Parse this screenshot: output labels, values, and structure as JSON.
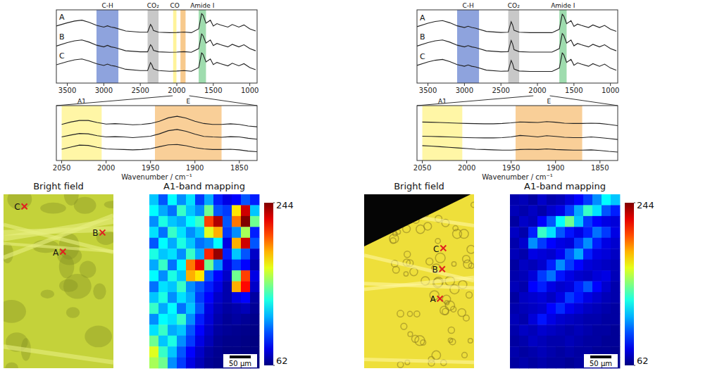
{
  "chart_data": [
    {
      "type": "line",
      "x": [
        3650,
        3500,
        3400,
        3300,
        3200,
        3100,
        3000,
        2950,
        2900,
        2850,
        2700,
        2500,
        2400,
        2360,
        2340,
        2320,
        2250,
        2100,
        2000,
        1900,
        1800,
        1700,
        1660,
        1640,
        1600,
        1540,
        1500,
        1450,
        1400,
        1300,
        1240,
        1150,
        1080,
        1000,
        920
      ],
      "xlim": [
        3650,
        900
      ],
      "xticks": [
        3500,
        3000,
        2500,
        2000,
        1500,
        1000
      ],
      "ylim": [
        0,
        3.4
      ],
      "tick_labels": "x",
      "bands": [
        {
          "label": "C-H",
          "range": [
            3100,
            2800
          ],
          "color": "#8ea3dd"
        },
        {
          "label": "CO₂",
          "range": [
            2400,
            2250
          ],
          "color": "#c8c8c8"
        },
        {
          "label": "CO",
          "range": [
            2050,
            2005
          ],
          "color": "#fff39a"
        },
        {
          "label": "",
          "range": [
            1950,
            1880
          ],
          "color": "#f7c98c"
        },
        {
          "label": "Amide I",
          "range": [
            1700,
            1600
          ],
          "color": "#9fdcae"
        }
      ],
      "series": [
        {
          "name": "A",
          "color": "#222222",
          "values": [
            2.65,
            2.8,
            2.88,
            2.92,
            2.82,
            2.68,
            2.6,
            2.66,
            2.6,
            2.57,
            2.42,
            2.36,
            2.36,
            2.72,
            2.62,
            2.44,
            2.36,
            2.34,
            2.35,
            2.37,
            2.34,
            2.52,
            3.22,
            3.15,
            2.78,
            2.92,
            2.65,
            2.76,
            2.7,
            2.6,
            2.72,
            2.6,
            2.7,
            2.52,
            2.42
          ]
        },
        {
          "name": "B",
          "color": "#222222",
          "values": [
            1.72,
            1.88,
            1.96,
            2.0,
            1.9,
            1.76,
            1.68,
            1.75,
            1.68,
            1.65,
            1.5,
            1.45,
            1.45,
            1.78,
            1.7,
            1.52,
            1.45,
            1.43,
            1.44,
            1.46,
            1.43,
            1.6,
            2.28,
            2.2,
            1.86,
            2.0,
            1.74,
            1.84,
            1.78,
            1.68,
            1.8,
            1.68,
            1.78,
            1.6,
            1.5
          ]
        },
        {
          "name": "C",
          "color": "#222222",
          "values": [
            0.85,
            1.0,
            1.08,
            1.12,
            1.02,
            0.9,
            0.82,
            0.88,
            0.82,
            0.79,
            0.64,
            0.58,
            0.58,
            0.95,
            0.84,
            0.66,
            0.58,
            0.55,
            0.56,
            0.58,
            0.55,
            0.72,
            1.4,
            1.33,
            0.98,
            1.12,
            0.86,
            0.96,
            0.9,
            0.8,
            0.92,
            0.8,
            0.9,
            0.72,
            0.62
          ]
        }
      ]
    },
    {
      "type": "line",
      "x": [
        2050,
        2040,
        2030,
        2020,
        2010,
        2000,
        1990,
        1980,
        1970,
        1960,
        1950,
        1940,
        1930,
        1920,
        1910,
        1900,
        1890,
        1880,
        1870,
        1860,
        1850,
        1840,
        1830
      ],
      "xlim": [
        2056,
        1830
      ],
      "xticks": [
        2050,
        2000,
        1950,
        1900,
        1850
      ],
      "ylim": [
        0,
        3.5
      ],
      "tick_labels": "x",
      "xlabel": "Wavenumber / cm⁻¹",
      "bands": [
        {
          "label": "A1",
          "range": [
            2050,
            2005
          ],
          "color": "#fff6a6"
        },
        {
          "label": "E",
          "range": [
            1945,
            1870
          ],
          "color": "#f9cf98"
        }
      ],
      "series": [
        {
          "color": "#222222",
          "values": [
            2.3,
            2.45,
            2.55,
            2.55,
            2.42,
            2.32,
            2.35,
            2.32,
            2.28,
            2.3,
            2.36,
            2.5,
            2.72,
            2.82,
            2.7,
            2.5,
            2.36,
            2.3,
            2.3,
            2.34,
            2.3,
            2.2,
            2.15
          ]
        },
        {
          "color": "#222222",
          "values": [
            1.5,
            1.62,
            1.72,
            1.7,
            1.58,
            1.5,
            1.52,
            1.5,
            1.46,
            1.5,
            1.55,
            1.7,
            1.9,
            1.98,
            1.86,
            1.68,
            1.54,
            1.5,
            1.48,
            1.52,
            1.5,
            1.42,
            1.36
          ]
        },
        {
          "color": "#222222",
          "values": [
            0.72,
            0.85,
            0.98,
            0.96,
            0.84,
            0.74,
            0.72,
            0.7,
            0.68,
            0.7,
            0.75,
            0.88,
            1.0,
            1.02,
            0.94,
            0.82,
            0.74,
            0.7,
            0.7,
            0.72,
            0.68,
            0.6,
            0.56
          ]
        }
      ]
    },
    {
      "type": "scatter",
      "title": "Bright field",
      "xlim": [
        0,
        1
      ],
      "ylim": [
        1,
        0
      ],
      "tick_labels": false,
      "x": [
        0.54,
        0.9,
        0.19
      ],
      "values": [
        0.33,
        0.22,
        0.07
      ],
      "labels": [
        "A",
        "B",
        "C"
      ],
      "color": "#e02020",
      "marker": "x"
    },
    {
      "type": "heatmap",
      "title": "A1-band mapping",
      "scale_bar": "50 µm",
      "colorbar": {
        "range": [
          62,
          244
        ],
        "ticks": [
          62,
          244
        ]
      },
      "cells": [
        [
          120,
          100,
          130,
          110,
          125,
          95,
          115,
          90,
          80,
          85,
          100,
          90
        ],
        [
          130,
          115,
          105,
          140,
          120,
          110,
          150,
          100,
          95,
          180,
          230,
          120
        ],
        [
          110,
          135,
          120,
          115,
          130,
          140,
          210,
          235,
          100,
          200,
          244,
          150
        ],
        [
          125,
          105,
          140,
          125,
          110,
          120,
          170,
          190,
          95,
          110,
          160,
          90
        ],
        [
          100,
          130,
          115,
          135,
          120,
          105,
          110,
          130,
          80,
          190,
          230,
          100
        ],
        [
          135,
          120,
          125,
          110,
          140,
          115,
          215,
          240,
          90,
          120,
          100,
          75
        ],
        [
          115,
          140,
          105,
          130,
          200,
          225,
          150,
          110,
          80,
          95,
          85,
          70
        ],
        [
          130,
          110,
          135,
          120,
          190,
          180,
          100,
          85,
          75,
          150,
          210,
          80
        ],
        [
          105,
          125,
          120,
          140,
          110,
          100,
          90,
          80,
          70,
          190,
          220,
          75
        ],
        [
          120,
          135,
          110,
          125,
          115,
          95,
          85,
          75,
          70,
          80,
          85,
          68
        ],
        [
          140,
          115,
          130,
          105,
          120,
          100,
          80,
          72,
          68,
          70,
          72,
          66
        ],
        [
          110,
          130,
          125,
          140,
          110,
          90,
          78,
          70,
          66,
          68,
          66,
          64
        ],
        [
          125,
          140,
          115,
          120,
          100,
          85,
          75,
          68,
          66,
          65,
          64,
          63
        ],
        [
          150,
          120,
          135,
          110,
          95,
          80,
          72,
          66,
          64,
          64,
          63,
          62
        ],
        [
          170,
          140,
          120,
          100,
          85,
          75,
          68,
          65,
          63,
          63,
          62,
          62
        ],
        [
          160,
          150,
          110,
          95,
          80,
          72,
          66,
          64,
          63,
          62,
          62,
          62
        ]
      ]
    },
    {
      "type": "line",
      "x": [
        3650,
        3500,
        3400,
        3300,
        3200,
        3100,
        3000,
        2950,
        2900,
        2850,
        2700,
        2500,
        2400,
        2360,
        2340,
        2320,
        2250,
        2100,
        2000,
        1900,
        1800,
        1700,
        1660,
        1640,
        1600,
        1540,
        1500,
        1450,
        1400,
        1300,
        1240,
        1150,
        1080,
        1000,
        920
      ],
      "xlim": [
        3650,
        900
      ],
      "xticks": [
        3500,
        3000,
        2500,
        2000,
        1500,
        1000
      ],
      "ylim": [
        0,
        3.4
      ],
      "tick_labels": "x",
      "bands": [
        {
          "label": "C-H",
          "range": [
            3100,
            2800
          ],
          "color": "#8ea3dd"
        },
        {
          "label": "CO₂",
          "range": [
            2400,
            2250
          ],
          "color": "#c8c8c8"
        },
        {
          "label": "Amide I",
          "range": [
            1700,
            1600
          ],
          "color": "#9fdcae"
        }
      ],
      "series": [
        {
          "name": "A",
          "color": "#222222",
          "values": [
            2.62,
            2.78,
            2.86,
            2.9,
            2.8,
            2.66,
            2.58,
            2.64,
            2.58,
            2.55,
            2.4,
            2.35,
            2.36,
            2.85,
            2.7,
            2.45,
            2.36,
            2.34,
            2.34,
            2.34,
            2.34,
            2.5,
            3.2,
            3.12,
            2.76,
            2.9,
            2.63,
            2.74,
            2.68,
            2.58,
            2.7,
            2.58,
            2.68,
            2.5,
            2.4
          ]
        },
        {
          "name": "B",
          "color": "#222222",
          "values": [
            1.72,
            1.88,
            1.96,
            2.0,
            1.9,
            1.76,
            1.68,
            1.74,
            1.68,
            1.65,
            1.5,
            1.45,
            1.46,
            1.98,
            1.82,
            1.55,
            1.46,
            1.44,
            1.44,
            1.44,
            1.44,
            1.6,
            2.3,
            2.22,
            1.86,
            2.0,
            1.73,
            1.84,
            1.78,
            1.68,
            1.8,
            1.68,
            1.78,
            1.6,
            1.5
          ]
        },
        {
          "name": "C",
          "color": "#222222",
          "values": [
            0.82,
            0.98,
            1.06,
            1.1,
            1.0,
            0.86,
            0.78,
            0.84,
            0.78,
            0.75,
            0.6,
            0.55,
            0.56,
            1.05,
            0.9,
            0.65,
            0.56,
            0.54,
            0.54,
            0.54,
            0.54,
            0.7,
            1.4,
            1.32,
            0.96,
            1.1,
            0.83,
            0.94,
            0.88,
            0.78,
            0.9,
            0.78,
            0.88,
            0.7,
            0.6
          ]
        }
      ]
    },
    {
      "type": "line",
      "x": [
        2050,
        2040,
        2030,
        2020,
        2010,
        2000,
        1990,
        1980,
        1970,
        1960,
        1950,
        1940,
        1930,
        1920,
        1910,
        1900,
        1890,
        1880,
        1870,
        1860,
        1850,
        1840,
        1830
      ],
      "xlim": [
        2056,
        1830
      ],
      "xticks": [
        2050,
        2000,
        1950,
        1900,
        1850
      ],
      "ylim": [
        0,
        3.5
      ],
      "tick_labels": "x",
      "xlabel": "Wavenumber / cm⁻¹",
      "bands": [
        {
          "label": "A1",
          "range": [
            2050,
            2005
          ],
          "color": "#fff6a6"
        },
        {
          "label": "E",
          "range": [
            1945,
            1870
          ],
          "color": "#f9cf98"
        }
      ],
      "series": [
        {
          "color": "#222222",
          "values": [
            2.45,
            2.44,
            2.42,
            2.4,
            2.38,
            2.36,
            2.35,
            2.34,
            2.34,
            2.36,
            2.4,
            2.46,
            2.44,
            2.42,
            2.48,
            2.44,
            2.38,
            2.36,
            2.36,
            2.38,
            2.36,
            2.3,
            2.22
          ]
        },
        {
          "color": "#222222",
          "values": [
            1.55,
            1.54,
            1.52,
            1.5,
            1.48,
            1.46,
            1.45,
            1.44,
            1.44,
            1.46,
            1.5,
            1.6,
            1.56,
            1.5,
            1.58,
            1.54,
            1.48,
            1.46,
            1.46,
            1.5,
            1.46,
            1.4,
            1.34
          ]
        },
        {
          "color": "#222222",
          "values": [
            0.95,
            0.92,
            0.88,
            0.84,
            0.8,
            0.76,
            0.72,
            0.7,
            0.68,
            0.66,
            0.66,
            0.7,
            0.72,
            0.7,
            0.74,
            0.7,
            0.68,
            0.66,
            0.66,
            0.68,
            0.64,
            0.58,
            0.54
          ]
        }
      ]
    },
    {
      "type": "scatter",
      "title": "Bright field",
      "xlim": [
        0,
        1
      ],
      "ylim": [
        1,
        0
      ],
      "tick_labels": false,
      "x": [
        0.69,
        0.71,
        0.72
      ],
      "values": [
        0.6,
        0.43,
        0.31
      ],
      "labels": [
        "A",
        "B",
        "C"
      ],
      "color": "#e02020",
      "marker": "x"
    },
    {
      "type": "heatmap",
      "title": "A1-band mapping",
      "scale_bar": "50 µm",
      "colorbar": {
        "range": [
          62,
          244
        ],
        "ticks": [
          62,
          244
        ]
      },
      "cells": [
        [
          70,
          72,
          68,
          75,
          70,
          72,
          78,
          85,
          95,
          110,
          130,
          120
        ],
        [
          72,
          70,
          74,
          70,
          76,
          80,
          95,
          115,
          140,
          125,
          100,
          90
        ],
        [
          68,
          75,
          72,
          85,
          100,
          130,
          150,
          120,
          95,
          85,
          80,
          78
        ],
        [
          74,
          70,
          90,
          140,
          125,
          100,
          88,
          80,
          90,
          105,
          95,
          80
        ],
        [
          70,
          76,
          110,
          95,
          85,
          80,
          78,
          95,
          110,
          90,
          80,
          76
        ],
        [
          72,
          70,
          80,
          78,
          76,
          82,
          100,
          115,
          90,
          80,
          78,
          74
        ],
        [
          68,
          74,
          72,
          76,
          90,
          110,
          95,
          85,
          78,
          76,
          74,
          72
        ],
        [
          70,
          72,
          78,
          95,
          105,
          88,
          80,
          76,
          74,
          78,
          80,
          72
        ],
        [
          72,
          70,
          85,
          90,
          80,
          76,
          78,
          90,
          100,
          85,
          76,
          70
        ],
        [
          68,
          74,
          76,
          78,
          74,
          80,
          95,
          88,
          80,
          76,
          72,
          70
        ],
        [
          70,
          72,
          74,
          76,
          85,
          92,
          82,
          78,
          74,
          72,
          70,
          68
        ],
        [
          72,
          70,
          78,
          88,
          80,
          76,
          74,
          72,
          70,
          70,
          68,
          68
        ],
        [
          70,
          74,
          72,
          76,
          74,
          72,
          70,
          72,
          70,
          68,
          68,
          66
        ],
        [
          68,
          70,
          74,
          72,
          70,
          70,
          72,
          70,
          68,
          68,
          66,
          66
        ],
        [
          70,
          68,
          70,
          72,
          70,
          68,
          70,
          68,
          68,
          66,
          66,
          65
        ],
        [
          68,
          70,
          68,
          70,
          68,
          68,
          66,
          68,
          66,
          66,
          65,
          65
        ]
      ]
    }
  ]
}
